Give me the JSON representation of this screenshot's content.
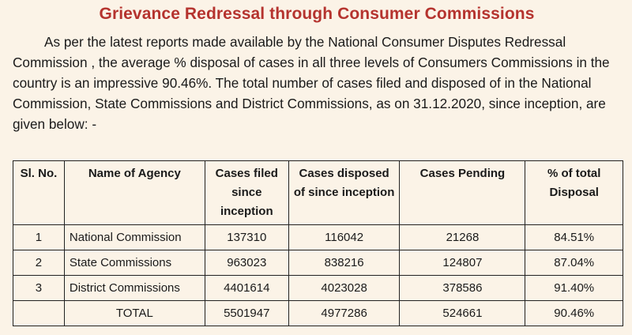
{
  "title": "Grievance Redressal through Consumer Commissions",
  "intro": "As per the latest reports made available by the National Consumer Disputes Redressal Commission , the average % disposal of cases in all three levels of Consumers Commissions in the country is an impressive 90.46%. The total number of cases filed and disposed of in the National Commission, State Commissions and District Commissions, as on 31.12.2020, since inception, are given below: -",
  "table": {
    "headers": [
      "Sl. No.",
      "Name of Agency",
      "Cases filed since inception",
      "Cases disposed of since inception",
      "Cases Pending",
      "% of total Disposal"
    ],
    "rows": [
      [
        "1",
        "National Commission",
        "137310",
        "116042",
        "21268",
        "84.51%"
      ],
      [
        "2",
        "State Commissions",
        "963023",
        "838216",
        "124807",
        "87.04%"
      ],
      [
        "3",
        "District Commissions",
        "4401614",
        "4023028",
        "378586",
        "91.40%"
      ]
    ],
    "total": [
      "",
      "TOTAL",
      "5501947",
      "4977286",
      "524661",
      "90.46%"
    ]
  }
}
